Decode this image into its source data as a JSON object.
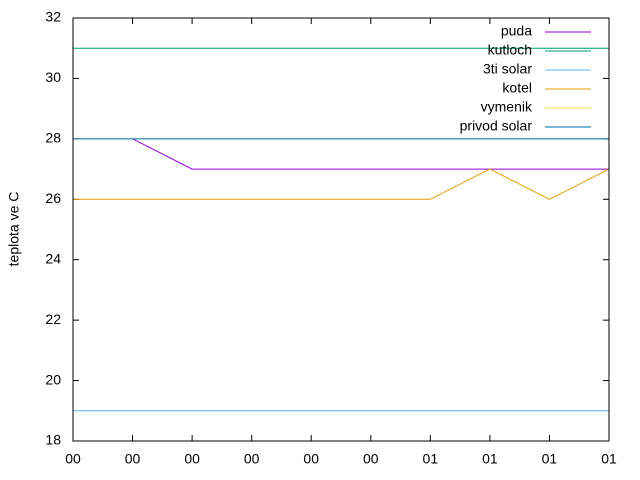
{
  "chart_data": {
    "type": "line",
    "y_label": "teplota ve C",
    "x": [
      0,
      1,
      2,
      3,
      4,
      5,
      6,
      7,
      8,
      9
    ],
    "xlim": [
      0,
      9
    ],
    "xticks": [
      {
        "value": 0,
        "label": "00"
      },
      {
        "value": 1,
        "label": "00"
      },
      {
        "value": 2,
        "label": "00"
      },
      {
        "value": 3,
        "label": "00"
      },
      {
        "value": 4,
        "label": "00"
      },
      {
        "value": 5,
        "label": "00"
      },
      {
        "value": 6,
        "label": "01"
      },
      {
        "value": 7,
        "label": "01"
      },
      {
        "value": 8,
        "label": "01"
      },
      {
        "value": 9,
        "label": "01"
      }
    ],
    "ylim": [
      18,
      32
    ],
    "yticks": [
      18,
      20,
      22,
      24,
      26,
      28,
      30,
      32
    ],
    "legend": "top-right",
    "series": [
      {
        "name": "puda",
        "color": "#9400d3",
        "values": [
          null,
          28,
          27,
          27,
          27,
          27,
          27,
          27,
          27,
          27
        ]
      },
      {
        "name": "kutloch",
        "color": "#009e73",
        "values": [
          31,
          31,
          31,
          31,
          31,
          31,
          31,
          31,
          31,
          31
        ]
      },
      {
        "name": "3ti solar",
        "color": "#56b4e9",
        "values": [
          19,
          19,
          19,
          19,
          19,
          19,
          19,
          19,
          19,
          19
        ]
      },
      {
        "name": "kotel",
        "color": "#e69f00",
        "values": [
          26,
          26,
          26,
          26,
          26,
          26,
          26,
          27,
          26,
          27
        ]
      },
      {
        "name": "vymenik",
        "color": "#f0e442",
        "values": [
          28,
          28,
          28,
          28,
          28,
          28,
          28,
          28,
          28,
          28
        ]
      },
      {
        "name": "privod solar",
        "color": "#0072b2",
        "values": [
          28,
          28,
          28,
          28,
          28,
          28,
          28,
          28,
          28,
          28
        ]
      }
    ]
  }
}
